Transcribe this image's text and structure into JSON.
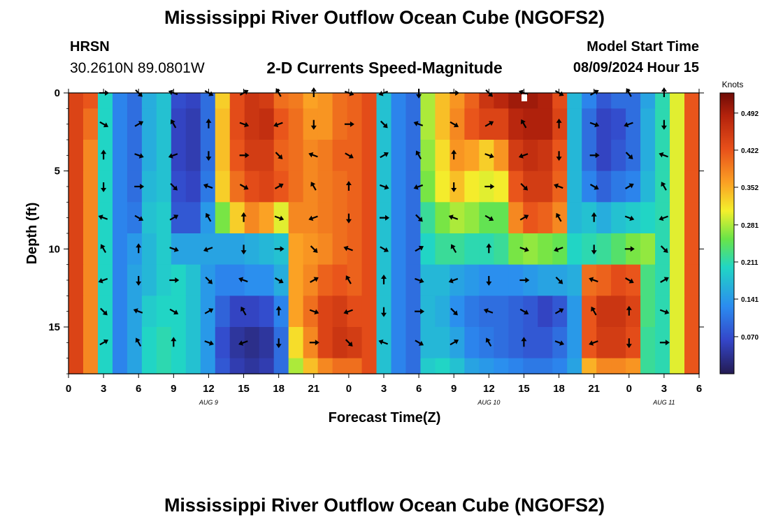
{
  "page": {
    "title": "Mississippi River Outflow Ocean Cube (NGOFS2)",
    "title_repeat": "Mississippi River Outflow Ocean Cube (NGOFS2)",
    "station_name": "HRSN",
    "station_coords": "30.2610N  89.0801W",
    "subtitle": "2-D Currents Speed-Magnitude",
    "model_start_label": "Model Start Time",
    "model_start_value": "08/09/2024 Hour 15"
  },
  "chart_data": {
    "type": "heatmap",
    "title": "2-D Currents Speed-Magnitude",
    "xlabel": "Forecast Time(Z)",
    "ylabel": "Depth (ft)",
    "x_range_hours": [
      0,
      54
    ],
    "x_tick_labels": [
      "0",
      "3",
      "6",
      "9",
      "12",
      "15",
      "18",
      "21",
      "0",
      "3",
      "6",
      "9",
      "12",
      "15",
      "18",
      "21",
      "0",
      "3",
      "6"
    ],
    "date_labels": [
      {
        "text": "AUG 9",
        "hour": 12
      },
      {
        "text": "AUG 10",
        "hour": 36
      },
      {
        "text": "AUG 11",
        "hour": 51
      }
    ],
    "y_range_ft": [
      0,
      18
    ],
    "y_tick_labels": [
      "0",
      "5",
      "10",
      "15"
    ],
    "y_reversed": true,
    "colorbar": {
      "label": "Knots",
      "ticks": [
        "0.492",
        "0.422",
        "0.352",
        "0.281",
        "0.211",
        "0.141",
        "0.070"
      ],
      "range": [
        0,
        0.53
      ],
      "colormap": "jet"
    },
    "depths_ft": [
      0,
      2,
      4,
      6,
      8,
      10,
      12,
      14,
      16,
      18
    ],
    "speed_knots": [
      [
        0.44,
        0.42,
        0.2,
        0.12,
        0.1,
        0.16,
        0.18,
        0.07,
        0.06,
        0.1,
        0.33,
        0.43,
        0.46,
        0.45,
        0.4,
        0.39,
        0.36,
        0.37,
        0.4,
        0.41,
        0.43,
        0.18,
        0.12,
        0.1,
        0.28,
        0.34,
        0.37,
        0.41,
        0.46,
        0.48,
        0.5,
        0.5,
        0.49,
        0.43,
        0.17,
        0.12,
        0.08,
        0.1,
        0.1,
        0.15,
        0.21,
        0.3,
        0.42
      ],
      [
        0.44,
        0.4,
        0.2,
        0.12,
        0.1,
        0.16,
        0.18,
        0.06,
        0.05,
        0.1,
        0.34,
        0.43,
        0.46,
        0.47,
        0.42,
        0.4,
        0.37,
        0.37,
        0.4,
        0.41,
        0.43,
        0.18,
        0.12,
        0.1,
        0.28,
        0.34,
        0.38,
        0.42,
        0.44,
        0.44,
        0.48,
        0.49,
        0.49,
        0.44,
        0.17,
        0.1,
        0.06,
        0.07,
        0.1,
        0.16,
        0.21,
        0.3,
        0.42
      ],
      [
        0.44,
        0.38,
        0.2,
        0.12,
        0.1,
        0.16,
        0.18,
        0.06,
        0.05,
        0.1,
        0.34,
        0.42,
        0.45,
        0.45,
        0.41,
        0.4,
        0.38,
        0.39,
        0.41,
        0.41,
        0.43,
        0.18,
        0.12,
        0.1,
        0.27,
        0.32,
        0.37,
        0.36,
        0.33,
        0.37,
        0.45,
        0.47,
        0.46,
        0.42,
        0.17,
        0.1,
        0.06,
        0.08,
        0.1,
        0.16,
        0.21,
        0.3,
        0.42
      ],
      [
        0.44,
        0.38,
        0.2,
        0.12,
        0.1,
        0.17,
        0.18,
        0.07,
        0.06,
        0.11,
        0.33,
        0.4,
        0.43,
        0.44,
        0.42,
        0.4,
        0.38,
        0.39,
        0.4,
        0.41,
        0.43,
        0.18,
        0.12,
        0.1,
        0.26,
        0.31,
        0.34,
        0.31,
        0.3,
        0.31,
        0.42,
        0.45,
        0.45,
        0.41,
        0.17,
        0.12,
        0.09,
        0.11,
        0.12,
        0.17,
        0.21,
        0.3,
        0.42
      ],
      [
        0.44,
        0.38,
        0.2,
        0.12,
        0.11,
        0.18,
        0.19,
        0.08,
        0.08,
        0.14,
        0.26,
        0.33,
        0.38,
        0.36,
        0.3,
        0.38,
        0.38,
        0.39,
        0.4,
        0.41,
        0.43,
        0.18,
        0.12,
        0.1,
        0.22,
        0.26,
        0.28,
        0.27,
        0.25,
        0.25,
        0.38,
        0.42,
        0.41,
        0.38,
        0.17,
        0.18,
        0.16,
        0.18,
        0.19,
        0.2,
        0.21,
        0.3,
        0.42
      ],
      [
        0.44,
        0.38,
        0.2,
        0.12,
        0.14,
        0.17,
        0.19,
        0.15,
        0.15,
        0.15,
        0.15,
        0.15,
        0.16,
        0.17,
        0.18,
        0.36,
        0.37,
        0.38,
        0.4,
        0.41,
        0.43,
        0.18,
        0.12,
        0.1,
        0.2,
        0.22,
        0.22,
        0.21,
        0.21,
        0.22,
        0.26,
        0.27,
        0.26,
        0.25,
        0.2,
        0.21,
        0.22,
        0.24,
        0.26,
        0.27,
        0.21,
        0.3,
        0.42
      ],
      [
        0.44,
        0.38,
        0.2,
        0.12,
        0.15,
        0.17,
        0.19,
        0.2,
        0.18,
        0.14,
        0.12,
        0.12,
        0.13,
        0.13,
        0.16,
        0.36,
        0.38,
        0.41,
        0.42,
        0.41,
        0.43,
        0.18,
        0.12,
        0.1,
        0.17,
        0.17,
        0.15,
        0.14,
        0.13,
        0.13,
        0.13,
        0.14,
        0.15,
        0.15,
        0.16,
        0.4,
        0.41,
        0.43,
        0.42,
        0.23,
        0.21,
        0.3,
        0.42
      ],
      [
        0.44,
        0.38,
        0.2,
        0.12,
        0.15,
        0.19,
        0.2,
        0.2,
        0.18,
        0.14,
        0.09,
        0.06,
        0.06,
        0.07,
        0.12,
        0.36,
        0.4,
        0.44,
        0.45,
        0.43,
        0.43,
        0.18,
        0.12,
        0.1,
        0.17,
        0.16,
        0.13,
        0.11,
        0.1,
        0.1,
        0.09,
        0.08,
        0.06,
        0.08,
        0.14,
        0.42,
        0.46,
        0.46,
        0.44,
        0.23,
        0.21,
        0.3,
        0.42
      ],
      [
        0.44,
        0.38,
        0.2,
        0.12,
        0.15,
        0.2,
        0.21,
        0.2,
        0.18,
        0.14,
        0.07,
        0.04,
        0.03,
        0.04,
        0.1,
        0.32,
        0.38,
        0.44,
        0.46,
        0.45,
        0.43,
        0.18,
        0.12,
        0.1,
        0.17,
        0.17,
        0.15,
        0.12,
        0.11,
        0.1,
        0.09,
        0.08,
        0.08,
        0.1,
        0.14,
        0.42,
        0.45,
        0.45,
        0.43,
        0.22,
        0.21,
        0.3,
        0.42
      ],
      [
        0.44,
        0.38,
        0.2,
        0.12,
        0.15,
        0.2,
        0.21,
        0.2,
        0.18,
        0.14,
        0.08,
        0.05,
        0.04,
        0.05,
        0.1,
        0.28,
        0.34,
        0.38,
        0.4,
        0.4,
        0.43,
        0.18,
        0.12,
        0.1,
        0.19,
        0.2,
        0.18,
        0.15,
        0.14,
        0.13,
        0.12,
        0.11,
        0.11,
        0.12,
        0.15,
        0.35,
        0.38,
        0.38,
        0.37,
        0.22,
        0.21,
        0.3,
        0.42
      ]
    ],
    "vectors_description": "black arrows showing current direction at 3-hour intervals and 2-ft depth spacing"
  }
}
